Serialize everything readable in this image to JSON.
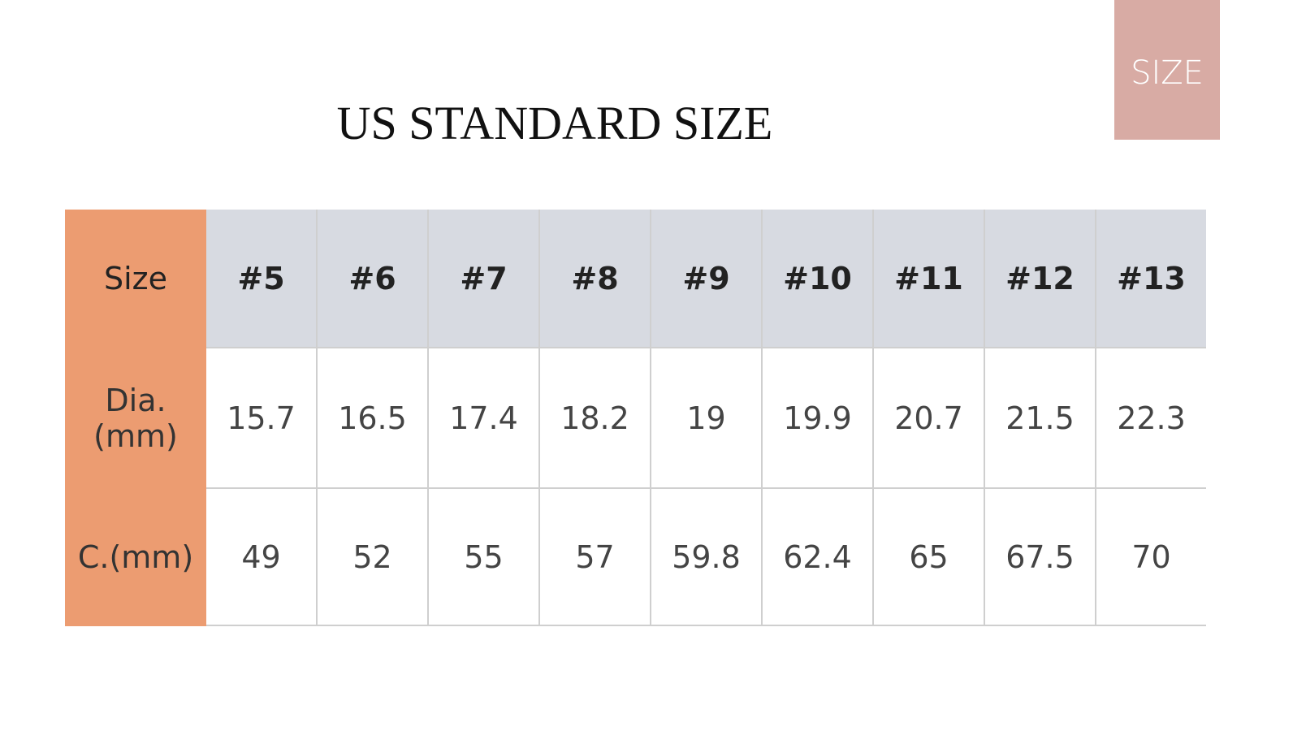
{
  "badge": "SIZE",
  "title": "US STANDARD SIZE",
  "table": {
    "header": [
      "Size",
      "#5",
      "#6",
      "#7",
      "#8",
      "#9",
      "#10",
      "#11",
      "#12",
      "#13"
    ],
    "rows": [
      [
        "Dia.(mm)",
        "15.7",
        "16.5",
        "17.4",
        "18.2",
        "19",
        "19.9",
        "20.7",
        "21.5",
        "22.3"
      ],
      [
        "C.(mm)",
        "49",
        "52",
        "55",
        "57",
        "59.8",
        "62.4",
        "65",
        "67.5",
        "70"
      ]
    ]
  }
}
